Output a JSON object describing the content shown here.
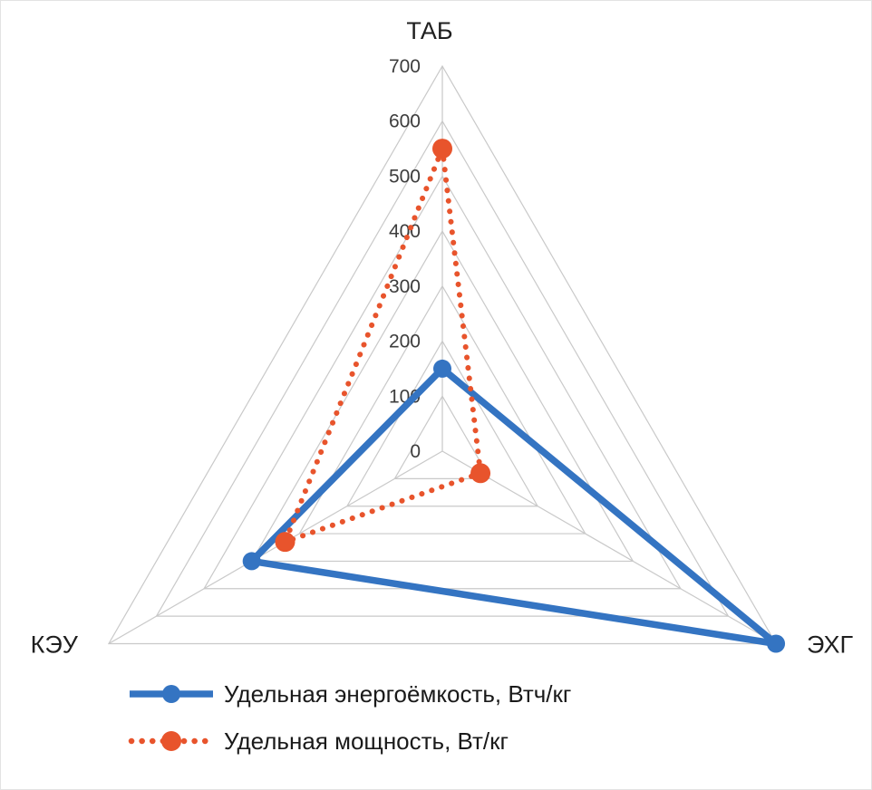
{
  "chart_data": {
    "type": "radar",
    "title": "",
    "axes": [
      "ТАБ",
      "ЭХГ",
      "КЭУ"
    ],
    "rmin": 0,
    "rmax": 700,
    "tick_interval": 100,
    "ticks": [
      700,
      600,
      500,
      400,
      300,
      200,
      100,
      0
    ],
    "grid": true,
    "grid_color": "#c9c9c9",
    "legend_position": "bottom-left",
    "series": [
      {
        "name": "Удельная энергоёмкость, Втч/кг",
        "values": [
          150,
          700,
          400
        ],
        "color": "#3474c2",
        "style": "solid"
      },
      {
        "name": "Удельная мощность, Вт/кг",
        "values": [
          550,
          80,
          330
        ],
        "color": "#e8542c",
        "style": "dotted"
      }
    ]
  }
}
